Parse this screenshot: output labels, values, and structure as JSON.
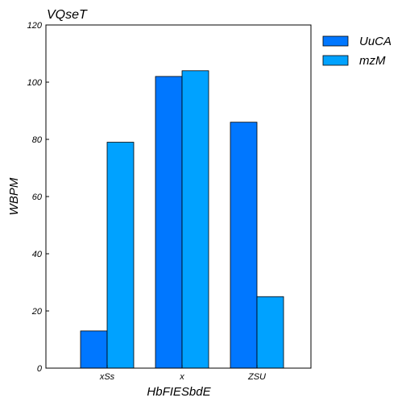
{
  "chart_data": {
    "type": "bar",
    "title": "VQseT",
    "xlabel": "HbFIESbdE",
    "ylabel": "WBPM",
    "categories": [
      "xSs",
      "x",
      "ZSU"
    ],
    "ylim": [
      0,
      120
    ],
    "yticks": [
      0,
      20,
      40,
      60,
      80,
      100,
      120
    ],
    "series": [
      {
        "name": "UuCA",
        "values": [
          13,
          102,
          86
        ],
        "color": "#0077ff"
      },
      {
        "name": "mzM",
        "values": [
          79,
          104,
          25
        ],
        "color": "#00a2ff"
      }
    ],
    "grid": false,
    "legend_position": "outside-top-right"
  }
}
